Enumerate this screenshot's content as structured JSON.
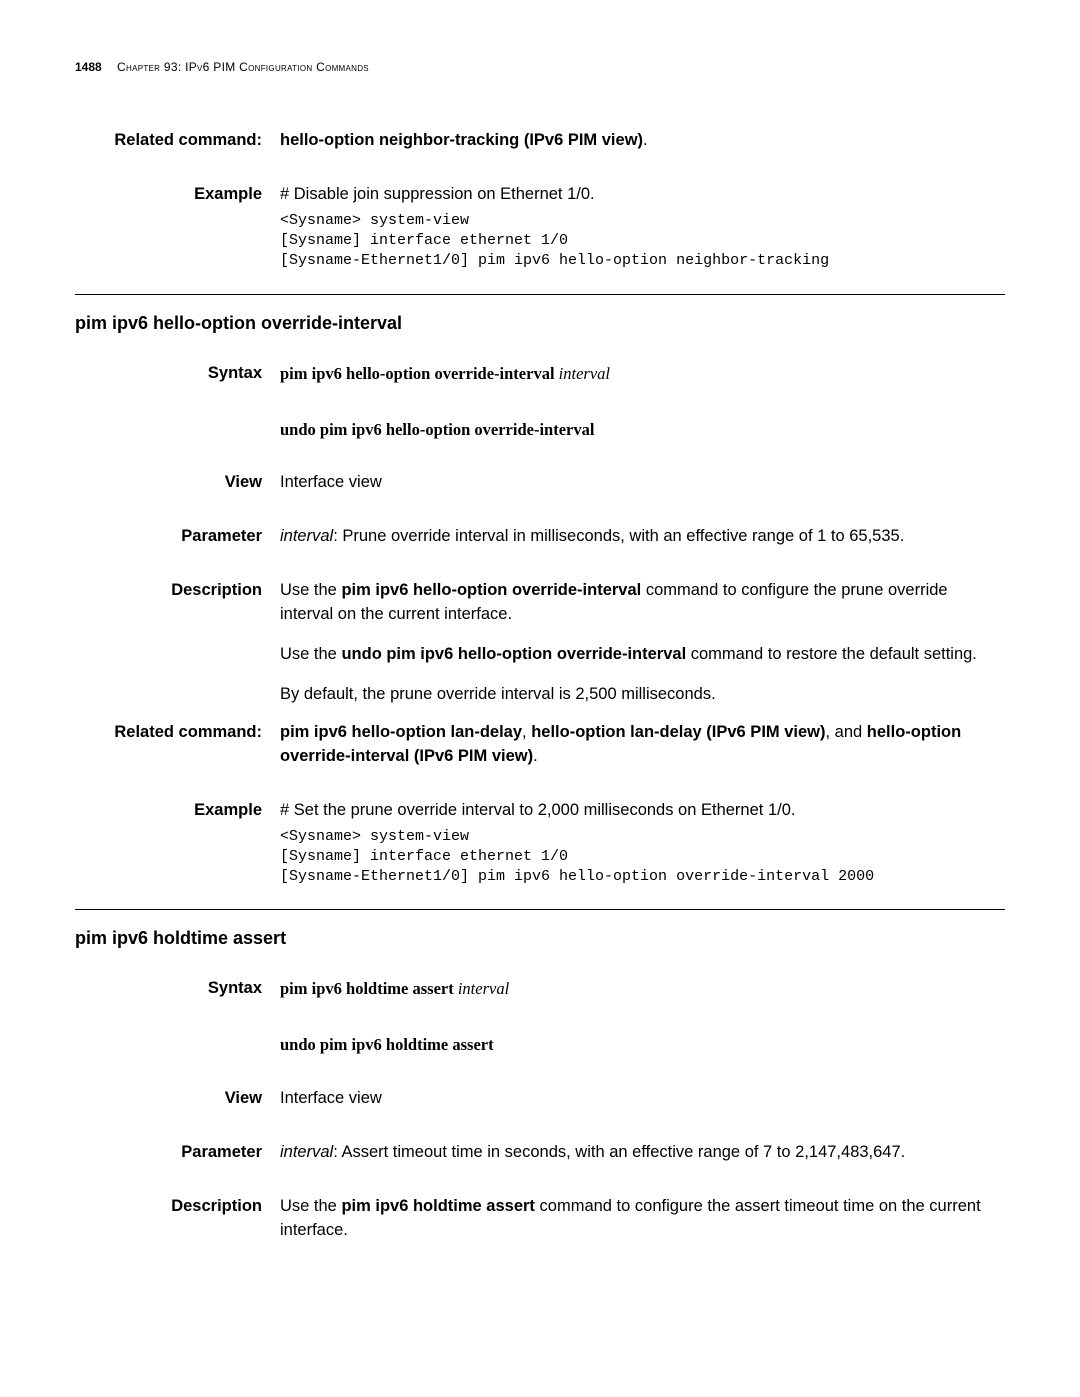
{
  "header": {
    "page_number": "1488",
    "chapter_text": "Chapter 93: IPv6 PIM Configuration Commands"
  },
  "section1": {
    "related_label": "Related command:",
    "related_text": "hello-option neighbor-tracking (IPv6 PIM view)",
    "example_label": "Example",
    "example_intro": "# Disable join suppression on Ethernet 1/0.",
    "example_code": "<Sysname> system-view\n[Sysname] interface ethernet 1/0\n[Sysname-Ethernet1/0] pim ipv6 hello-option neighbor-tracking"
  },
  "section2": {
    "title": "pim ipv6 hello-option override-interval",
    "syntax_label": "Syntax",
    "syntax_cmd": "pim ipv6 hello-option override-interval",
    "syntax_arg": "interval",
    "undo_cmd": "undo pim ipv6 hello-option override-interval",
    "view_label": "View",
    "view_text": "Interface view",
    "param_label": "Parameter",
    "param_arg": "interval",
    "param_text": ": Prune override interval in milliseconds, with an effective range of 1 to 65,535.",
    "desc_label": "Description",
    "desc_p1_pre": "Use the ",
    "desc_p1_cmd": "pim ipv6 hello-option override-interval",
    "desc_p1_post": " command to configure the prune override interval on the current interface.",
    "desc_p2_pre": "Use the ",
    "desc_p2_cmd": "undo pim ipv6 hello-option override-interval",
    "desc_p2_post": " command to restore the default setting.",
    "desc_p3": "By default, the prune override interval is 2,500 milliseconds.",
    "related_label": "Related command:",
    "related_cmd1": "pim ipv6 hello-option lan-delay",
    "related_sep1": ", ",
    "related_cmd2": "hello-option lan-delay (IPv6 PIM view)",
    "related_sep2": ", and ",
    "related_cmd3": "hello-option override-interval (IPv6 PIM view)",
    "example_label": "Example",
    "example_intro": "# Set the prune override interval to 2,000 milliseconds on Ethernet 1/0.",
    "example_code": "<Sysname> system-view\n[Sysname] interface ethernet 1/0\n[Sysname-Ethernet1/0] pim ipv6 hello-option override-interval 2000"
  },
  "section3": {
    "title": "pim ipv6 holdtime assert",
    "syntax_label": "Syntax",
    "syntax_cmd": "pim ipv6 holdtime assert",
    "syntax_arg": "interval",
    "undo_cmd": "undo pim ipv6 holdtime assert",
    "view_label": "View",
    "view_text": "Interface view",
    "param_label": "Parameter",
    "param_arg": "interval",
    "param_text": ": Assert timeout time in seconds, with an effective range of 7 to 2,147,483,647.",
    "desc_label": "Description",
    "desc_p1_pre": "Use the ",
    "desc_p1_cmd": "pim ipv6 holdtime assert",
    "desc_p1_post": " command to configure the assert timeout time on the current interface."
  }
}
